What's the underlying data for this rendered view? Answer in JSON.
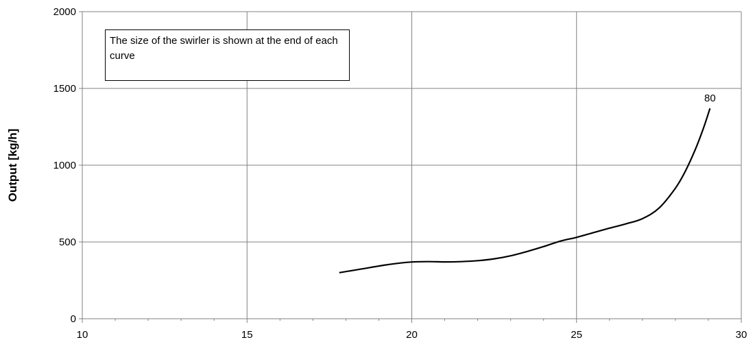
{
  "chart_data": {
    "type": "line",
    "title": "",
    "xlabel": "",
    "ylabel": "Output [kg/h]",
    "xlim": [
      10,
      30
    ],
    "ylim": [
      0,
      2000
    ],
    "xticks": [
      10,
      15,
      20,
      25,
      30
    ],
    "yticks": [
      0,
      500,
      1000,
      1500,
      2000
    ],
    "grid": true,
    "annotation": "The size of the swirler is shown at the end of each curve",
    "series": [
      {
        "name": "80",
        "color": "#000000",
        "x": [
          17.8,
          18.5,
          19.2,
          19.9,
          20.5,
          21.0,
          21.5,
          22.0,
          22.5,
          23.0,
          23.5,
          24.0,
          24.5,
          25.0,
          25.5,
          26.0,
          26.5,
          27.0,
          27.5,
          28.0,
          28.3,
          28.6,
          28.85,
          29.05
        ],
        "y": [
          300,
          325,
          350,
          368,
          372,
          370,
          372,
          378,
          390,
          410,
          438,
          470,
          505,
          530,
          560,
          590,
          618,
          652,
          720,
          850,
          960,
          1100,
          1240,
          1370
        ]
      }
    ]
  }
}
